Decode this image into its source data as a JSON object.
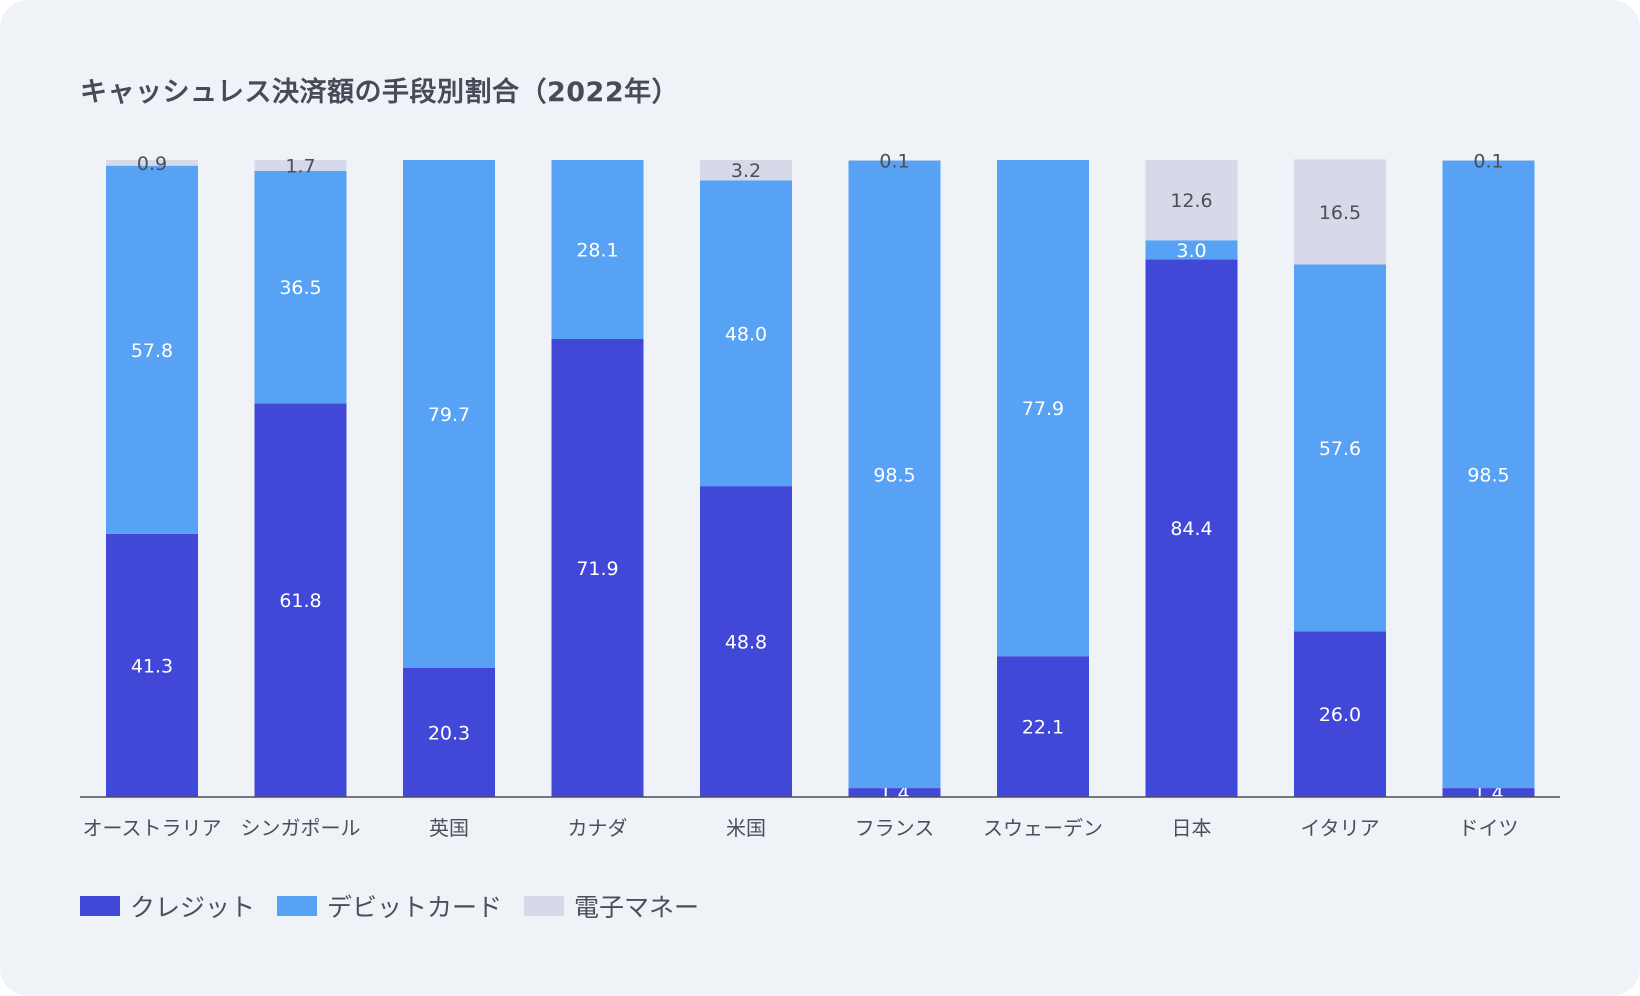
{
  "chart_data": {
    "type": "bar",
    "stacked": true,
    "title": "キャッシュレス決済額の手段別割合（2022年）",
    "categories": [
      "オーストラリア",
      "シンガポール",
      "英国",
      "カナダ",
      "米国",
      "フランス",
      "スウェーデン",
      "日本",
      "イタリア",
      "ドイツ"
    ],
    "series": [
      {
        "name": "クレジット",
        "color": "#4148d8",
        "values": [
          41.3,
          61.8,
          20.3,
          71.9,
          48.8,
          1.4,
          22.1,
          84.4,
          26.0,
          1.4
        ]
      },
      {
        "name": "デビットカード",
        "color": "#57a2f5",
        "values": [
          57.8,
          36.5,
          79.7,
          28.1,
          48.0,
          98.5,
          77.9,
          3.0,
          57.6,
          98.5
        ]
      },
      {
        "name": "電子マネー",
        "color": "#d5d9e8",
        "values": [
          0.9,
          1.7,
          null,
          null,
          3.2,
          0.1,
          null,
          12.6,
          16.5,
          0.1
        ]
      }
    ],
    "ylim": [
      0,
      100
    ],
    "grid": false,
    "legend": "bottom-left"
  }
}
